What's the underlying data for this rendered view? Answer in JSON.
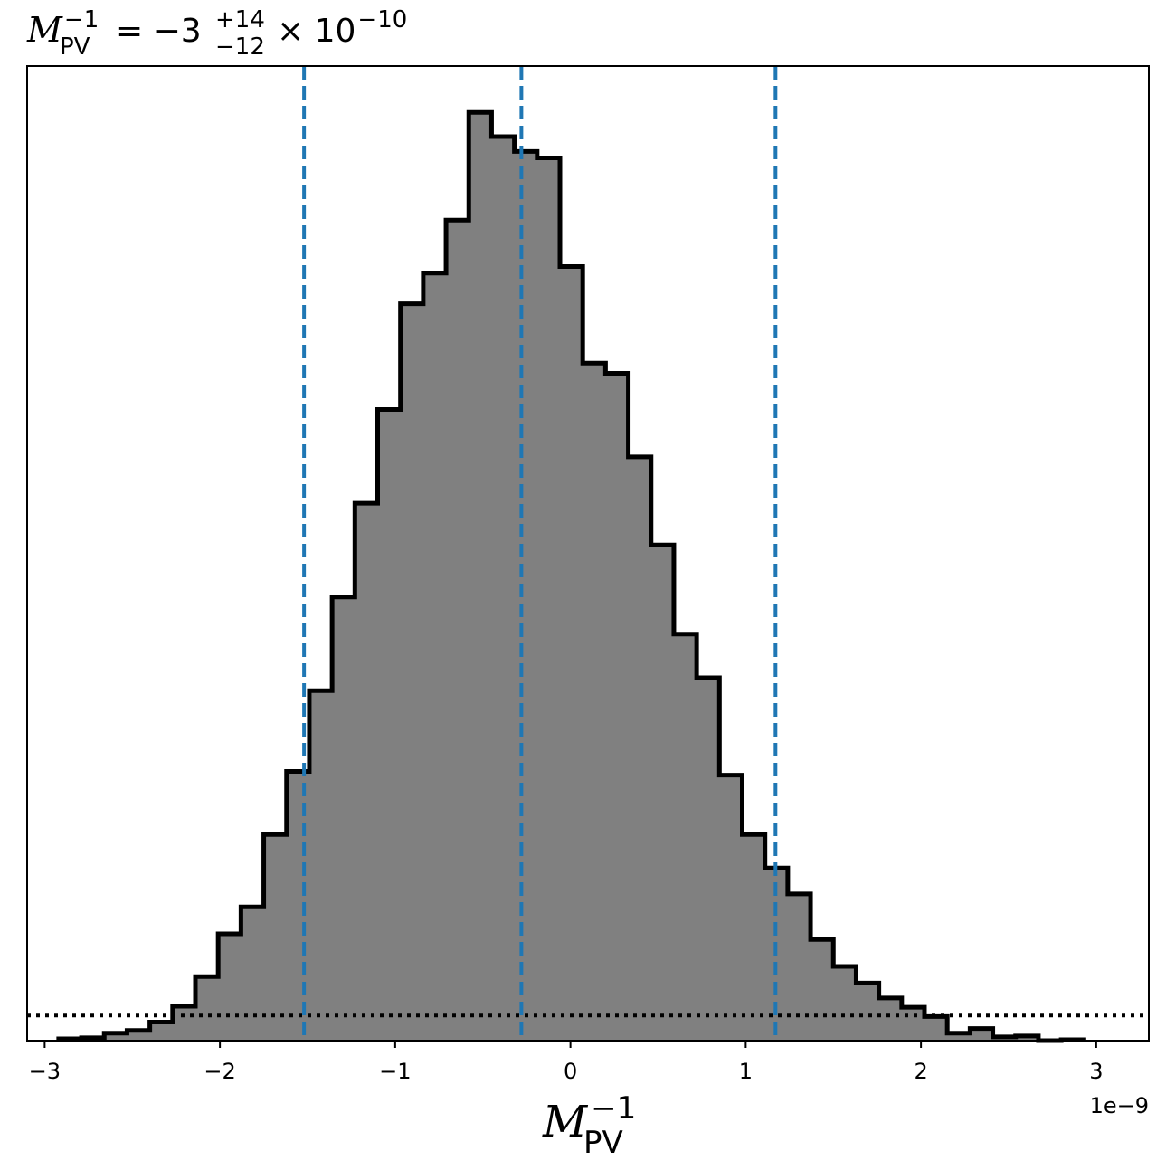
{
  "chart_data": {
    "type": "bar",
    "title": {
      "symbol": "M",
      "subscript": "PV",
      "superscript": "−1",
      "equals": "= −3",
      "upper_error": "+14",
      "lower_error": "−12",
      "multiplier": "× 10",
      "exponent": "−10"
    },
    "xlabel": {
      "symbol": "M",
      "subscript": "PV",
      "superscript": "−1"
    },
    "offset_label": "1e−9",
    "xlim": [
      -3.1,
      3.3
    ],
    "ylim": [
      0,
      1.05
    ],
    "xticks": [
      -3,
      -2,
      -1,
      0,
      1,
      2,
      3
    ],
    "xtick_labels": [
      "−3",
      "−2",
      "−1",
      "0",
      "1",
      "2",
      "3"
    ],
    "yticks_visible": false,
    "bin_edges": [
      -2.92,
      -2.79,
      -2.66,
      -2.53,
      -2.4,
      -2.27,
      -2.14,
      -2.01,
      -1.88,
      -1.75,
      -1.62,
      -1.49,
      -1.36,
      -1.23,
      -1.1,
      -0.97,
      -0.84,
      -0.71,
      -0.58,
      -0.45,
      -0.32,
      -0.19,
      -0.06,
      0.07,
      0.2,
      0.33,
      0.46,
      0.59,
      0.72,
      0.85,
      0.98,
      1.11,
      1.24,
      1.37,
      1.5,
      1.63,
      1.76,
      1.89,
      2.02,
      2.15,
      2.28,
      2.41,
      2.54,
      2.67,
      2.8,
      2.93
    ],
    "values": [
      0.002,
      0.003,
      0.008,
      0.011,
      0.02,
      0.037,
      0.069,
      0.115,
      0.144,
      0.222,
      0.29,
      0.377,
      0.478,
      0.579,
      0.68,
      0.794,
      0.827,
      0.884,
      1.0,
      0.974,
      0.958,
      0.951,
      0.834,
      0.73,
      0.719,
      0.629,
      0.534,
      0.438,
      0.391,
      0.286,
      0.222,
      0.186,
      0.158,
      0.109,
      0.08,
      0.062,
      0.046,
      0.036,
      0.026,
      0.008,
      0.013,
      0.004,
      0.005,
      0.0,
      0.001
    ],
    "vertical_lines": [
      -1.52,
      -0.28,
      1.17
    ],
    "horizontal_line": 0.027,
    "colors": {
      "fill": "#808080",
      "edge": "#000000",
      "vertical_lines": "#1f77b4",
      "horizontal_line": "#000000"
    },
    "grid": false,
    "legend": "none"
  }
}
